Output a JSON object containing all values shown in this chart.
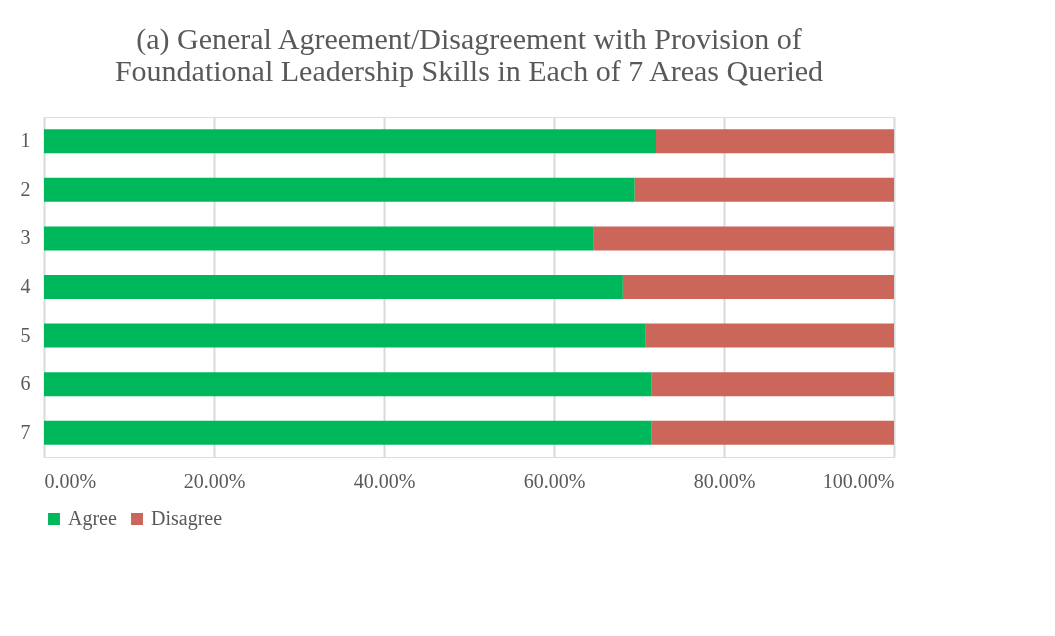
{
  "chart_data": {
    "type": "bar",
    "orientation": "horizontal",
    "stacked": true,
    "title": "(a) General Agreement/Disagreement with Provision of Foundational Leadership Skills in Each of 7 Areas Queried",
    "categories": [
      "1",
      "2",
      "3",
      "4",
      "5",
      "6",
      "7"
    ],
    "series": [
      {
        "name": "Agree",
        "color": "#00b85c",
        "values": [
          72.0,
          69.5,
          64.6,
          68.1,
          70.8,
          71.5,
          71.5
        ]
      },
      {
        "name": "Disagree",
        "color": "#cc655a",
        "values": [
          28.0,
          30.5,
          35.4,
          31.9,
          29.2,
          28.5,
          28.5
        ]
      }
    ],
    "xlim": [
      0,
      100
    ],
    "xticks": [
      {
        "value": 0,
        "label": "0.00%"
      },
      {
        "value": 20,
        "label": "20.00%"
      },
      {
        "value": 40,
        "label": "40.00%"
      },
      {
        "value": 60,
        "label": "60.00%"
      },
      {
        "value": 80,
        "label": "80.00%"
      },
      {
        "value": 100,
        "label": "100.00%"
      }
    ],
    "grid": "x",
    "legend": "bottom"
  }
}
